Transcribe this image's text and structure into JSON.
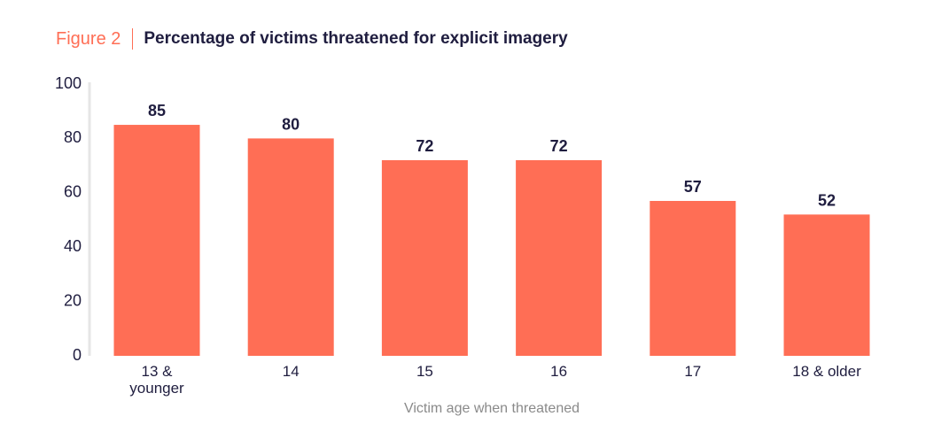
{
  "figure_label": "Figure 2",
  "chart_data": {
    "type": "bar",
    "title": "Percentage of victims threatened for explicit imagery",
    "categories": [
      [
        "13 &",
        "younger"
      ],
      [
        "14"
      ],
      [
        "15"
      ],
      [
        "16"
      ],
      [
        "17"
      ],
      [
        "18 & older"
      ]
    ],
    "values": [
      85,
      80,
      72,
      72,
      57,
      52
    ],
    "xlabel": "Victim age when threatened",
    "ylabel": "",
    "ylim": [
      0,
      100
    ],
    "yticks": [
      0,
      20,
      40,
      60,
      80,
      100
    ],
    "grid": false,
    "bar_color": "#ff6e55",
    "text_color": "#1f1d3f",
    "axis_color": "#e6e6e6"
  }
}
